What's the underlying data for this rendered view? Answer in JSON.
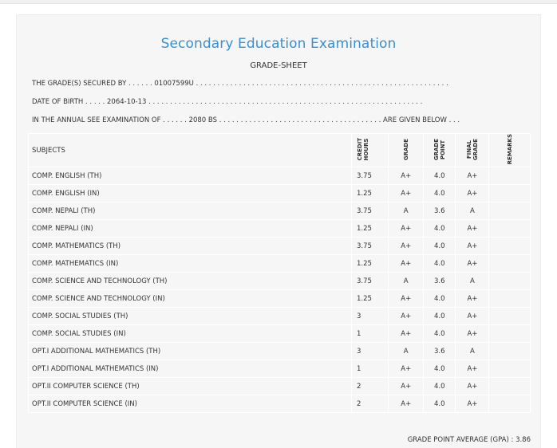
{
  "sheet": {
    "title": "Secondary Education Examination",
    "subtitle": "GRADE-SHEET",
    "secured_line": "THE GRADE(S) SECURED BY . . . . . . 01007599U . . . . . . . . . . . . . . . . . . . . . . . . . . . . . . . . . . . . . . . . . . . . . . . . . . . . . . . . . . .",
    "dob_line": "DATE OF BIRTH . . . . . 2064-10-13 . . . . . . . . . . . . . . . . . . . . . . . . . . . . . . . . . . . . . . . . . . . . . . . . . . . . . . . . . . . . . . . .",
    "exam_line": "IN THE ANNUAL SEE EXAMINATION OF . . . . . . 2080 BS . . . . . . . . . . . . . . . . . . . . . . . . . . . . . . . . . . . . . . ARE GIVEN BELOW . . ."
  },
  "table": {
    "headers": {
      "subjects": "SUBJECTS",
      "credit_hours": "CREDIT\nHOURS",
      "grade": "GRADE",
      "grade_point": "GRADE\nPOINT",
      "final_grade": "FINAL\nGRADE",
      "remarks": "REMARKS"
    },
    "rows": [
      {
        "subject": "COMP. ENGLISH (TH)",
        "credit_hours": "3.75",
        "grade": "A+",
        "grade_point": "4.0",
        "final_grade": "A+",
        "remarks": ""
      },
      {
        "subject": "COMP. ENGLISH (IN)",
        "credit_hours": "1.25",
        "grade": "A+",
        "grade_point": "4.0",
        "final_grade": "A+",
        "remarks": ""
      },
      {
        "subject": "COMP. NEPALI (TH)",
        "credit_hours": "3.75",
        "grade": "A",
        "grade_point": "3.6",
        "final_grade": "A",
        "remarks": ""
      },
      {
        "subject": "COMP. NEPALI (IN)",
        "credit_hours": "1.25",
        "grade": "A+",
        "grade_point": "4.0",
        "final_grade": "A+",
        "remarks": ""
      },
      {
        "subject": "COMP. MATHEMATICS (TH)",
        "credit_hours": "3.75",
        "grade": "A+",
        "grade_point": "4.0",
        "final_grade": "A+",
        "remarks": ""
      },
      {
        "subject": "COMP. MATHEMATICS (IN)",
        "credit_hours": "1.25",
        "grade": "A+",
        "grade_point": "4.0",
        "final_grade": "A+",
        "remarks": ""
      },
      {
        "subject": "COMP. SCIENCE AND TECHNOLOGY (TH)",
        "credit_hours": "3.75",
        "grade": "A",
        "grade_point": "3.6",
        "final_grade": "A",
        "remarks": ""
      },
      {
        "subject": "COMP. SCIENCE AND TECHNOLOGY (IN)",
        "credit_hours": "1.25",
        "grade": "A+",
        "grade_point": "4.0",
        "final_grade": "A+",
        "remarks": ""
      },
      {
        "subject": "COMP. SOCIAL STUDIES (TH)",
        "credit_hours": "3",
        "grade": "A+",
        "grade_point": "4.0",
        "final_grade": "A+",
        "remarks": ""
      },
      {
        "subject": "COMP. SOCIAL STUDIES (IN)",
        "credit_hours": "1",
        "grade": "A+",
        "grade_point": "4.0",
        "final_grade": "A+",
        "remarks": ""
      },
      {
        "subject": "OPT.I ADDITIONAL MATHEMATICS (TH)",
        "credit_hours": "3",
        "grade": "A",
        "grade_point": "3.6",
        "final_grade": "A",
        "remarks": ""
      },
      {
        "subject": "OPT.I ADDITIONAL MATHEMATICS (IN)",
        "credit_hours": "1",
        "grade": "A+",
        "grade_point": "4.0",
        "final_grade": "A+",
        "remarks": ""
      },
      {
        "subject": "OPT.II COMPUTER SCIENCE (TH)",
        "credit_hours": "2",
        "grade": "A+",
        "grade_point": "4.0",
        "final_grade": "A+",
        "remarks": ""
      },
      {
        "subject": "OPT.II COMPUTER SCIENCE (IN)",
        "credit_hours": "2",
        "grade": "A+",
        "grade_point": "4.0",
        "final_grade": "A+",
        "remarks": ""
      }
    ]
  },
  "gpa_text": "GRADE POINT AVERAGE (GPA) : 3.86",
  "colors": {
    "title": "#3a8fd0",
    "sheet_background": "#f6f6f6",
    "cell_border": "#ffffff",
    "text": "#333333"
  }
}
